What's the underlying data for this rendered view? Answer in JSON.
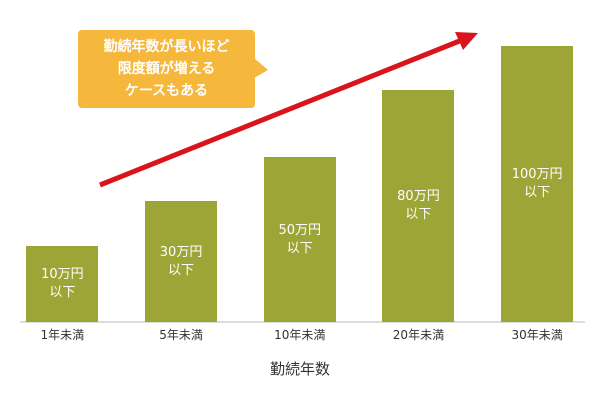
{
  "chart_data": {
    "type": "bar",
    "categories": [
      "1年未満",
      "5年未満",
      "10年未満",
      "20年未満",
      "30年未満"
    ],
    "values": [
      10,
      30,
      50,
      80,
      100
    ],
    "value_labels": [
      "10万円\n以下",
      "30万円\n以下",
      "50万円\n以下",
      "80万円\n以下",
      "100万円\n以下"
    ],
    "color": "#9ca536",
    "x_label": "勤続年数",
    "annotation": "勤続年数が長いほど\n限度額が増える\nケースもある"
  }
}
